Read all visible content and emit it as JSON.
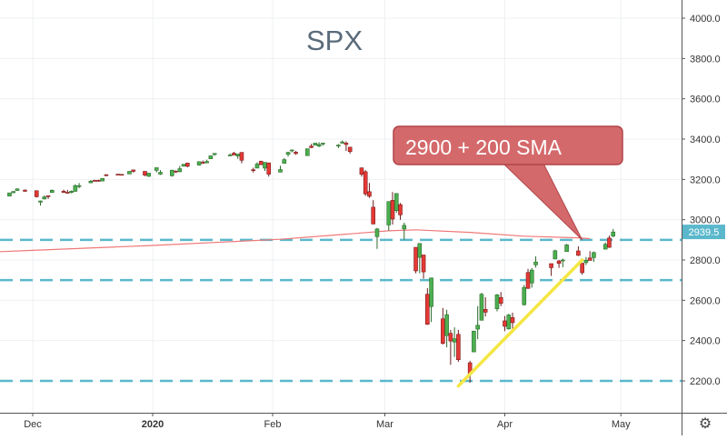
{
  "chart_data": {
    "type": "candlestick",
    "title": "SPX",
    "price_axis_labels": [
      "4000.0",
      "3800.0",
      "3600.0",
      "3400.0",
      "3200.0",
      "3000.0",
      "2800.0",
      "2600.0",
      "2400.0",
      "2200.0"
    ],
    "time_axis_labels": [
      "Dec",
      "2020",
      "Feb",
      "Mar",
      "Apr",
      "May"
    ],
    "ylim": [
      2040,
      4060
    ],
    "last_price": "2939.5",
    "horizontal_levels": [
      2900,
      2700,
      2200
    ],
    "annotation": {
      "text": "2900 + 200 SMA",
      "points_to": [
        "2020-04-21",
        2900
      ]
    },
    "sma_label": "200 SMA",
    "sma_200": [
      [
        "2019-11-07",
        2830
      ],
      [
        "2019-12-01",
        2848
      ],
      [
        "2020-01-01",
        2872
      ],
      [
        "2020-02-03",
        2903
      ],
      [
        "2020-03-02",
        2945
      ],
      [
        "2020-03-09",
        2950
      ],
      [
        "2020-03-23",
        2937
      ],
      [
        "2020-04-06",
        2918
      ],
      [
        "2020-04-20",
        2910
      ],
      [
        "2020-04-23",
        2906
      ]
    ],
    "trendline": [
      [
        "2020-03-20",
        2175
      ],
      [
        "2020-04-21",
        2800
      ]
    ],
    "candles": [
      [
        "2019-11-08",
        3092,
        3095,
        3085,
        3093
      ],
      [
        "2019-11-11",
        3080,
        3088,
        3076,
        3087
      ],
      [
        "2019-11-12",
        3089,
        3102,
        3085,
        3091
      ],
      [
        "2019-11-13",
        3084,
        3098,
        3080,
        3094
      ],
      [
        "2019-11-14",
        3090,
        3102,
        3085,
        3096
      ],
      [
        "2019-11-15",
        3107,
        3121,
        3104,
        3120
      ],
      [
        "2019-11-18",
        3117,
        3124,
        3112,
        3122
      ],
      [
        "2019-11-19",
        3127,
        3127,
        3113,
        3120
      ],
      [
        "2019-11-20",
        3114,
        3118,
        3090,
        3108
      ],
      [
        "2019-11-21",
        3108,
        3110,
        3094,
        3103
      ],
      [
        "2019-11-22",
        3112,
        3112,
        3099,
        3110
      ],
      [
        "2019-11-25",
        3117,
        3133,
        3117,
        3133
      ],
      [
        "2019-11-26",
        3134,
        3142,
        3131,
        3140
      ],
      [
        "2019-11-27",
        3145,
        3155,
        3143,
        3153
      ],
      [
        "2019-11-29",
        3147,
        3150,
        3139,
        3141
      ],
      [
        "2019-12-02",
        3144,
        3145,
        3110,
        3114
      ],
      [
        "2019-12-03",
        3087,
        3095,
        3070,
        3093
      ],
      [
        "2019-12-04",
        3103,
        3120,
        3100,
        3113
      ],
      [
        "2019-12-05",
        3119,
        3120,
        3103,
        3117
      ],
      [
        "2019-12-06",
        3135,
        3150,
        3134,
        3146
      ],
      [
        "2019-12-09",
        3141,
        3149,
        3135,
        3135
      ],
      [
        "2019-12-10",
        3136,
        3148,
        3130,
        3132
      ],
      [
        "2019-12-11",
        3135,
        3145,
        3131,
        3141
      ],
      [
        "2019-12-12",
        3141,
        3176,
        3138,
        3169
      ],
      [
        "2019-12-13",
        3166,
        3182,
        3156,
        3169
      ],
      [
        "2019-12-16",
        3183,
        3197,
        3183,
        3191
      ],
      [
        "2019-12-17",
        3195,
        3198,
        3191,
        3192
      ],
      [
        "2019-12-18",
        3195,
        3199,
        3190,
        3191
      ],
      [
        "2019-12-19",
        3192,
        3206,
        3192,
        3205
      ],
      [
        "2019-12-20",
        3223,
        3226,
        3216,
        3221
      ],
      [
        "2019-12-23",
        3226,
        3227,
        3222,
        3224
      ],
      [
        "2019-12-24",
        3225,
        3226,
        3220,
        3223
      ],
      [
        "2019-12-26",
        3227,
        3240,
        3227,
        3240
      ],
      [
        "2019-12-27",
        3247,
        3247,
        3234,
        3240
      ],
      [
        "2019-12-30",
        3240,
        3240,
        3216,
        3221
      ],
      [
        "2019-12-31",
        3215,
        3231,
        3213,
        3231
      ],
      [
        "2020-01-02",
        3245,
        3258,
        3235,
        3258
      ],
      [
        "2020-01-03",
        3226,
        3246,
        3222,
        3235
      ],
      [
        "2020-01-06",
        3218,
        3247,
        3214,
        3246
      ],
      [
        "2020-01-07",
        3241,
        3245,
        3232,
        3237
      ],
      [
        "2020-01-08",
        3238,
        3267,
        3236,
        3253
      ],
      [
        "2020-01-09",
        3266,
        3276,
        3263,
        3275
      ],
      [
        "2020-01-10",
        3281,
        3283,
        3260,
        3265
      ],
      [
        "2020-01-13",
        3271,
        3288,
        3268,
        3288
      ],
      [
        "2020-01-14",
        3285,
        3294,
        3277,
        3283
      ],
      [
        "2020-01-15",
        3282,
        3298,
        3280,
        3289
      ],
      [
        "2020-01-16",
        3302,
        3317,
        3302,
        3317
      ],
      [
        "2020-01-17",
        3323,
        3330,
        3318,
        3329
      ],
      [
        "2020-01-21",
        3321,
        3329,
        3316,
        3321
      ],
      [
        "2020-01-22",
        3330,
        3337,
        3320,
        3321
      ],
      [
        "2020-01-23",
        3316,
        3326,
        3302,
        3326
      ],
      [
        "2020-01-24",
        3334,
        3334,
        3280,
        3295
      ],
      [
        "2020-01-27",
        3248,
        3258,
        3234,
        3244
      ],
      [
        "2020-01-28",
        3256,
        3285,
        3256,
        3276
      ],
      [
        "2020-01-29",
        3290,
        3293,
        3271,
        3273
      ],
      [
        "2020-01-30",
        3256,
        3286,
        3242,
        3284
      ],
      [
        "2020-01-31",
        3282,
        3282,
        3214,
        3226
      ],
      [
        "2020-02-03",
        3236,
        3268,
        3236,
        3249
      ],
      [
        "2020-02-04",
        3280,
        3306,
        3280,
        3298
      ],
      [
        "2020-02-05",
        3324,
        3337,
        3313,
        3334
      ],
      [
        "2020-02-06",
        3344,
        3347,
        3334,
        3346
      ],
      [
        "2020-02-07",
        3335,
        3341,
        3322,
        3328
      ],
      [
        "2020-02-10",
        3318,
        3352,
        3317,
        3352
      ],
      [
        "2020-02-11",
        3365,
        3376,
        3355,
        3358
      ],
      [
        "2020-02-12",
        3370,
        3381,
        3369,
        3380
      ],
      [
        "2020-02-13",
        3365,
        3385,
        3360,
        3373
      ],
      [
        "2020-02-14",
        3378,
        3380,
        3367,
        3380
      ],
      [
        "2020-02-18",
        3369,
        3375,
        3355,
        3370
      ],
      [
        "2020-02-19",
        3380,
        3393,
        3378,
        3386
      ],
      [
        "2020-02-20",
        3380,
        3389,
        3341,
        3373
      ],
      [
        "2020-02-21",
        3360,
        3360,
        3328,
        3338
      ],
      [
        "2020-02-24",
        3257,
        3259,
        3214,
        3225
      ],
      [
        "2020-02-25",
        3238,
        3246,
        3118,
        3128
      ],
      [
        "2020-02-26",
        3139,
        3182,
        3108,
        3116
      ],
      [
        "2020-02-27",
        3062,
        3097,
        2977,
        2979
      ],
      [
        "2020-02-28",
        2916,
        2959,
        2855,
        2954
      ],
      [
        "2020-03-02",
        2974,
        3090,
        2946,
        3090
      ],
      [
        "2020-03-03",
        3096,
        3137,
        2976,
        3003
      ],
      [
        "2020-03-04",
        3045,
        3130,
        3034,
        3130
      ],
      [
        "2020-03-05",
        3075,
        3083,
        2999,
        3024
      ],
      [
        "2020-03-06",
        2954,
        2985,
        2901,
        2972
      ],
      [
        "2020-03-09",
        2863,
        2863,
        2734,
        2746
      ],
      [
        "2020-03-10",
        2813,
        2882,
        2734,
        2882
      ],
      [
        "2020-03-11",
        2825,
        2825,
        2707,
        2741
      ],
      [
        "2020-03-12",
        2630,
        2660,
        2478,
        2481
      ],
      [
        "2020-03-13",
        2569,
        2711,
        2492,
        2711
      ],
      [
        "2020-03-16",
        2508,
        2562,
        2381,
        2386
      ],
      [
        "2020-03-17",
        2425,
        2553,
        2367,
        2529
      ],
      [
        "2020-03-18",
        2436,
        2453,
        2280,
        2398
      ],
      [
        "2020-03-19",
        2393,
        2466,
        2319,
        2409
      ],
      [
        "2020-03-20",
        2431,
        2453,
        2295,
        2305
      ],
      [
        "2020-03-23",
        2290,
        2300,
        2191,
        2237
      ],
      [
        "2020-03-24",
        2344,
        2449,
        2344,
        2447
      ],
      [
        "2020-03-25",
        2457,
        2571,
        2407,
        2476
      ],
      [
        "2020-03-26",
        2501,
        2637,
        2500,
        2630
      ],
      [
        "2020-03-27",
        2555,
        2615,
        2520,
        2541
      ],
      [
        "2020-03-30",
        2558,
        2631,
        2545,
        2627
      ],
      [
        "2020-03-31",
        2614,
        2641,
        2571,
        2585
      ],
      [
        "2020-04-01",
        2498,
        2522,
        2447,
        2471
      ],
      [
        "2020-04-02",
        2458,
        2533,
        2455,
        2527
      ],
      [
        "2020-04-03",
        2514,
        2539,
        2459,
        2489
      ],
      [
        "2020-04-06",
        2578,
        2676,
        2574,
        2664
      ],
      [
        "2020-04-07",
        2738,
        2756,
        2657,
        2659
      ],
      [
        "2020-04-08",
        2686,
        2760,
        2663,
        2750
      ],
      [
        "2020-04-09",
        2776,
        2818,
        2762,
        2790
      ],
      [
        "2020-04-13",
        2782,
        2782,
        2721,
        2762
      ],
      [
        "2020-04-14",
        2805,
        2851,
        2805,
        2846
      ],
      [
        "2020-04-15",
        2795,
        2801,
        2761,
        2783
      ],
      [
        "2020-04-16",
        2800,
        2807,
        2764,
        2800
      ],
      [
        "2020-04-17",
        2842,
        2880,
        2842,
        2875
      ],
      [
        "2020-04-20",
        2845,
        2868,
        2820,
        2823
      ],
      [
        "2020-04-21",
        2784,
        2785,
        2727,
        2737
      ],
      [
        "2020-04-22",
        2787,
        2815,
        2775,
        2799
      ],
      [
        "2020-04-23",
        2810,
        2844,
        2797,
        2798
      ],
      [
        "2020-04-24",
        2812,
        2842,
        2791,
        2837
      ],
      [
        "2020-04-27",
        2854,
        2887,
        2852,
        2878
      ],
      [
        "2020-04-28",
        2909,
        2921,
        2860,
        2863
      ],
      [
        "2020-04-29",
        2919,
        2954,
        2913,
        2939
      ]
    ]
  },
  "ui": {
    "settings_icon": "gear-icon"
  }
}
